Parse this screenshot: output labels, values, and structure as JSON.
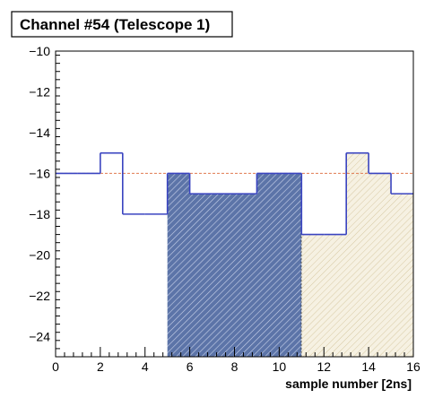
{
  "chart_data": {
    "type": "histogram",
    "title": "Channel #54 (Telescope 1)",
    "xlabel": "sample number [2ns]",
    "ylabel": "",
    "xlim": [
      0,
      16
    ],
    "ylim": [
      -25,
      -10
    ],
    "x_ticks": [
      0,
      2,
      4,
      6,
      8,
      10,
      12,
      14,
      16
    ],
    "y_ticks": [
      -24,
      -22,
      -20,
      -18,
      -16,
      -14,
      -12,
      -10
    ],
    "bin_edges": [
      0,
      1,
      2,
      3,
      4,
      5,
      6,
      7,
      8,
      9,
      10,
      11,
      12,
      13,
      14,
      15,
      16
    ],
    "values": [
      -16,
      -16,
      -15,
      -18,
      -18,
      -16,
      -17,
      -17,
      -17,
      -16,
      -16,
      -19,
      -19,
      -15,
      -16,
      -17
    ],
    "baseline": -16,
    "regions": [
      {
        "from": 5,
        "to": 11,
        "fill": "#5c74a8"
      },
      {
        "from": 11,
        "to": 16,
        "fill": "#efe7cf"
      }
    ],
    "grid": false,
    "colors": {
      "histogram": "#3a44c0",
      "baseline": "#e07a50"
    }
  }
}
